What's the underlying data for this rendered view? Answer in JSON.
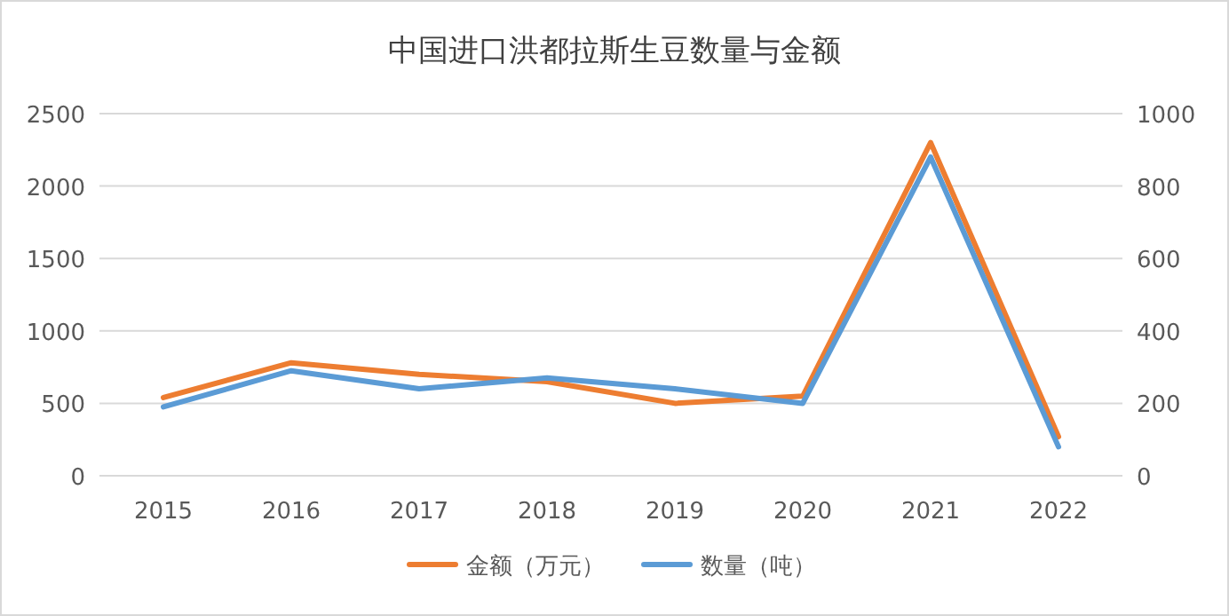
{
  "chart_data": {
    "type": "line",
    "title": "中国进口洪都拉斯生豆数量与金额",
    "categories": [
      "2015",
      "2016",
      "2017",
      "2018",
      "2019",
      "2020",
      "2021",
      "2022"
    ],
    "series": [
      {
        "name": "金额（万元）",
        "color": "#ed7d31",
        "values": [
          540,
          780,
          700,
          650,
          500,
          550,
          2300,
          270
        ]
      },
      {
        "name": "数量（吨）",
        "color": "#5b9bd5",
        "axis": "y2",
        "values": [
          190,
          290,
          240,
          270,
          240,
          200,
          880,
          80
        ]
      }
    ],
    "ylim": [
      0,
      2500
    ],
    "yticks": [
      0,
      500,
      1000,
      1500,
      2000,
      2500
    ],
    "y2lim": [
      0,
      1000
    ],
    "y2ticks": [
      0,
      200,
      400,
      600,
      800,
      1000
    ],
    "grid": "y",
    "legend": "bottom",
    "marker": "none",
    "line_style": "solid"
  }
}
